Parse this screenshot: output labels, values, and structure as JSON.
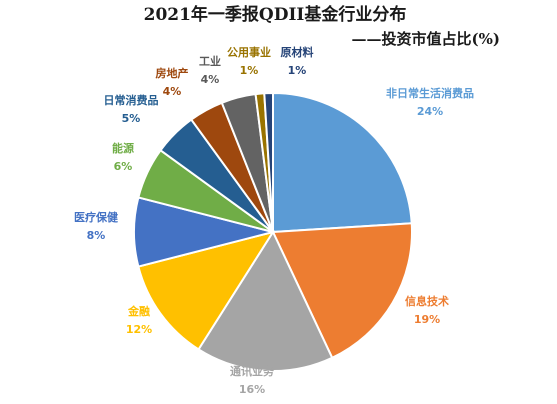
{
  "chart_data": {
    "type": "pie",
    "title": "2021年一季报QDII基金行业分布",
    "subtitle": "——投资市值占比(%)",
    "categories": [
      "非日常生活消费品",
      "信息技术",
      "通讯业务",
      "金融",
      "医疗保健",
      "能源",
      "日常消费品",
      "房地产",
      "工业",
      "公用事业",
      "原材料"
    ],
    "values": [
      24,
      19,
      16,
      12,
      8,
      6,
      5,
      4,
      4,
      1,
      1
    ],
    "value_labels": [
      "24%",
      "19%",
      "16%",
      "12%",
      "8%",
      "6%",
      "5%",
      "4%",
      "4%",
      "1%",
      "1%"
    ],
    "colors": [
      "#5b9bd5",
      "#ed7d31",
      "#a5a5a5",
      "#ffc000",
      "#4472c4",
      "#70ad47",
      "#255e91",
      "#9e480e",
      "#636363",
      "#997300",
      "#264478"
    ],
    "label_colors": [
      "#5b9bd5",
      "#ed7d31",
      "#a5a5a5",
      "#ffc000",
      "#4472c4",
      "#70ad47",
      "#255e91",
      "#9e480e",
      "#595959",
      "#997300",
      "#264478"
    ],
    "legend": "none"
  }
}
